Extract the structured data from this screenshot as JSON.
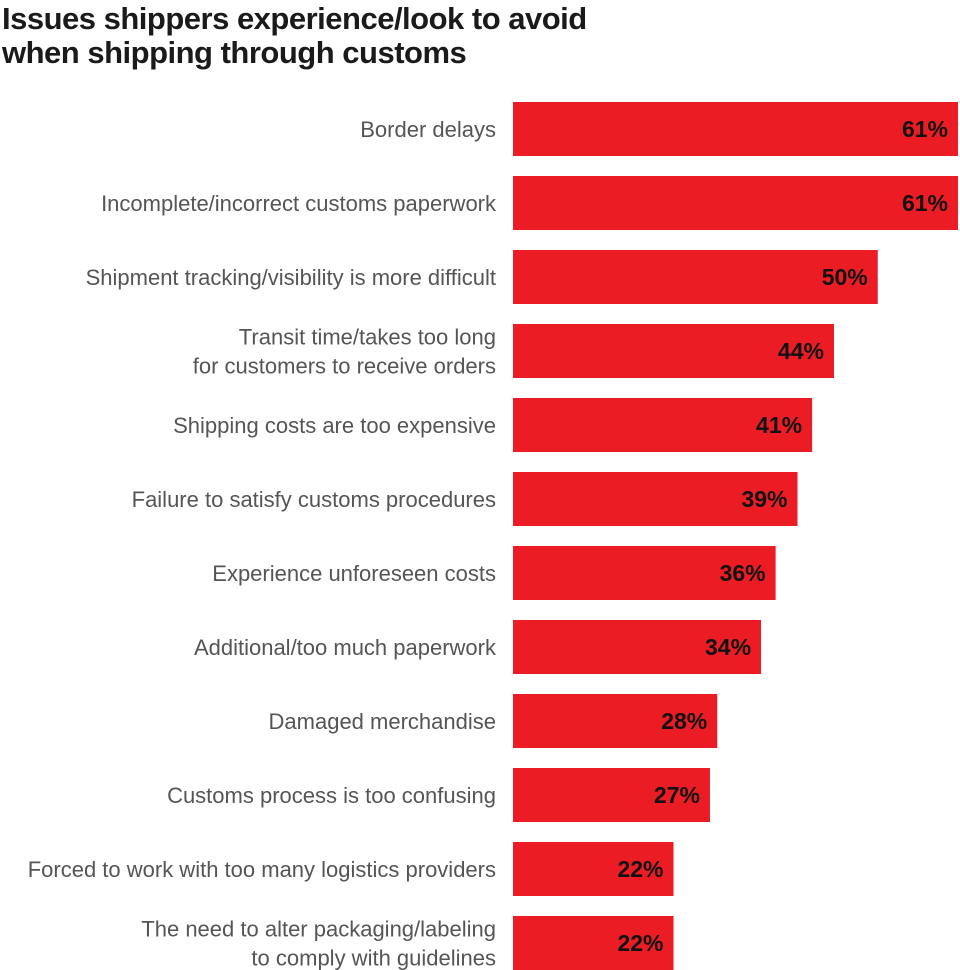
{
  "title_lines": [
    "Issues shippers experience/look to avoid",
    "when shipping through customs"
  ],
  "colors": {
    "bar": "#ec1c24",
    "label": "#555555",
    "value": "#111111"
  },
  "chart_data": {
    "type": "bar",
    "orientation": "horizontal",
    "title": "Issues shippers experience/look to avoid when shipping through customs",
    "xlabel": "",
    "ylabel": "",
    "xlim": [
      0,
      61
    ],
    "grid": false,
    "legend": "none",
    "categories": [
      [
        "Border delays"
      ],
      [
        "Incomplete/incorrect customs paperwork"
      ],
      [
        "Shipment tracking/visibility is more difficult"
      ],
      [
        "Transit time/takes too long",
        "for customers to receive orders"
      ],
      [
        "Shipping costs are too expensive"
      ],
      [
        "Failure to satisfy customs procedures"
      ],
      [
        "Experience unforeseen costs"
      ],
      [
        "Additional/too much paperwork"
      ],
      [
        "Damaged merchandise"
      ],
      [
        "Customs process is too confusing"
      ],
      [
        "Forced to work with too many logistics providers"
      ],
      [
        "The need to alter packaging/labeling",
        "to comply with guidelines"
      ]
    ],
    "values": [
      61,
      61,
      50,
      44,
      41,
      39,
      36,
      34,
      28,
      27,
      22,
      22
    ],
    "value_labels": [
      "61%",
      "61%",
      "50%",
      "44%",
      "41%",
      "39%",
      "36%",
      "34%",
      "28%",
      "27%",
      "22%",
      "22%"
    ]
  }
}
